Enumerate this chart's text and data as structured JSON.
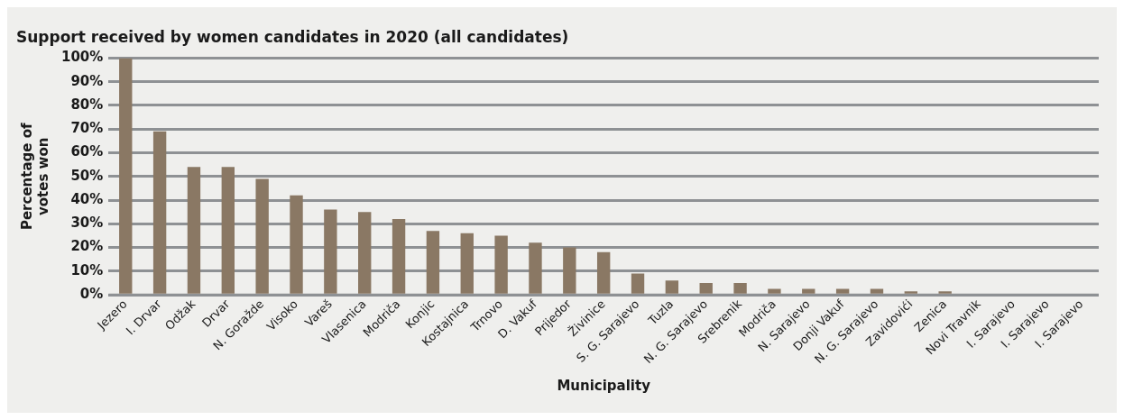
{
  "chart_data": {
    "type": "bar",
    "title": "Support received by women candidates in 2020 (all candidates)",
    "xlabel": "Municipality",
    "ylabel": "Percentage of votes won",
    "categories": [
      "Jezero",
      "I. Drvar",
      "Odžak",
      "Drvar",
      "N. Goražde",
      "Visoko",
      "Vareš",
      "Vlasenica",
      "Modriča",
      "Konjic",
      "Kostajnica",
      "Trnovo",
      "D. Vakuf",
      "Prijedor",
      "Živinice",
      "S. G. Sarajevo",
      "Tuzla",
      "N. G. Sarajevo",
      "Srebrenik",
      "Modriča",
      "N. Sarajevo",
      "Donji Vakuf",
      "N. G. Sarajevo",
      "Zavidovići",
      "Zenica",
      "Novi Travnik",
      "I. Sarajevo",
      "I. Sarajevo",
      "I. Sarajevo"
    ],
    "values": [
      100,
      69,
      54,
      54,
      49,
      42,
      36,
      35,
      32,
      27,
      26,
      25,
      22,
      20,
      18,
      9,
      6,
      5,
      5,
      2.5,
      2.5,
      2.5,
      2.5,
      1.5,
      1.5,
      0,
      0,
      0,
      0
    ],
    "color": "#8a7864",
    "ylim": [
      0,
      100
    ],
    "yticks": [
      {
        "value": 0,
        "label": "0%"
      },
      {
        "value": 10,
        "label": "10%"
      },
      {
        "value": 20,
        "label": "20%"
      },
      {
        "value": 30,
        "label": "30%"
      },
      {
        "value": 40,
        "label": "40%"
      },
      {
        "value": 50,
        "label": "50%"
      },
      {
        "value": 60,
        "label": "60%"
      },
      {
        "value": 70,
        "label": "70%"
      },
      {
        "value": 80,
        "label": "80%"
      },
      {
        "value": 90,
        "label": "90%"
      },
      {
        "value": 100,
        "label": "100%"
      }
    ],
    "grid": "y",
    "legend": false
  }
}
